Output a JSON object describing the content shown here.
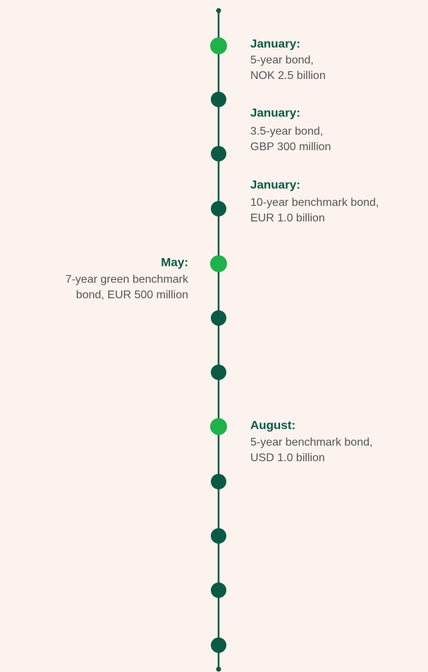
{
  "timeline": {
    "events": [
      {
        "month": "January:",
        "lines": [
          "5-year bond,",
          "NOK 2.5 billion"
        ]
      },
      {
        "month": "January:",
        "lines": [
          "3.5-year bond,",
          "GBP 300 million"
        ]
      },
      {
        "month": "January:",
        "lines": [
          "10-year benchmark bond,",
          "EUR 1.0 billion"
        ]
      },
      {
        "month": "May:",
        "lines": [
          "7-year green benchmark",
          "bond, EUR 500 million"
        ]
      },
      {
        "month": "August:",
        "lines": [
          "5-year benchmark bond,",
          "USD 1.0 billion"
        ]
      }
    ]
  }
}
